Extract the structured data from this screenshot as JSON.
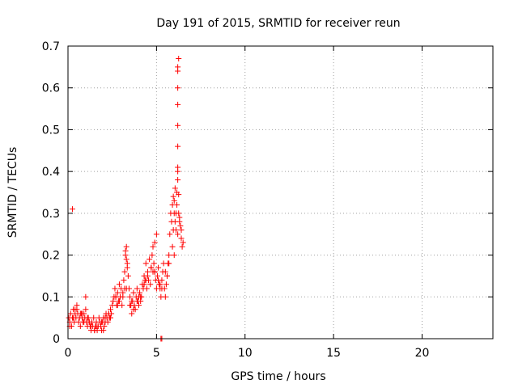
{
  "chart_data": {
    "type": "scatter",
    "title": "Day 191 of 2015, SRMTID for receiver reun",
    "xlabel": "GPS time / hours",
    "ylabel": "SRMTID / TECUs",
    "xlim": [
      0,
      24
    ],
    "ylim": [
      0,
      0.7
    ],
    "xticks": [
      0,
      5,
      10,
      15,
      20
    ],
    "xtick_labels": [
      "0",
      "5",
      "10",
      "15",
      "20"
    ],
    "yticks": [
      0,
      0.1,
      0.2,
      0.3,
      0.4,
      0.5,
      0.6,
      0.7
    ],
    "ytick_labels": [
      "0",
      "0.1",
      "0.2",
      "0.3",
      "0.4",
      "0.5",
      "0.6",
      "0.7"
    ],
    "grid": true,
    "marker": "+",
    "color": "#ff0000",
    "series": [
      {
        "name": "SRMTID",
        "x": [
          0.05,
          0.1,
          0.15,
          0.2,
          0.25,
          0.3,
          0.35,
          0.4,
          0.45,
          0.5,
          0.55,
          0.6,
          0.65,
          0.7,
          0.75,
          0.8,
          0.85,
          0.9,
          0.95,
          1.0,
          1.05,
          1.1,
          1.15,
          1.2,
          1.25,
          1.3,
          1.35,
          1.4,
          1.45,
          1.5,
          1.55,
          1.6,
          1.65,
          1.7,
          1.75,
          1.8,
          1.85,
          1.9,
          1.95,
          2.0,
          2.05,
          2.1,
          2.15,
          2.2,
          2.25,
          2.3,
          2.35,
          2.4,
          2.45,
          2.5,
          2.55,
          2.6,
          2.65,
          2.7,
          2.75,
          2.8,
          2.85,
          2.9,
          2.95,
          3.0,
          3.05,
          3.1,
          3.15,
          3.2,
          3.25,
          3.3,
          3.35,
          3.4,
          3.45,
          3.5,
          3.55,
          3.6,
          3.65,
          3.7,
          3.75,
          3.8,
          3.85,
          3.9,
          3.95,
          4.0,
          4.05,
          4.1,
          4.15,
          4.2,
          4.25,
          4.3,
          4.35,
          4.4,
          4.45,
          4.5,
          4.55,
          4.6,
          4.65,
          4.7,
          4.75,
          4.8,
          4.85,
          4.9,
          4.95,
          5.0,
          5.05,
          5.1,
          5.15,
          5.2,
          5.25,
          5.3,
          5.35,
          5.4,
          5.45,
          5.5,
          5.55,
          5.6,
          5.65,
          5.7,
          5.75,
          5.8,
          5.85,
          5.9,
          5.95,
          6.0,
          6.05,
          6.1,
          6.15,
          6.2,
          6.25,
          6.3,
          6.35,
          6.4,
          6.45,
          6.5,
          0.1,
          0.3,
          0.5,
          0.7,
          0.9,
          1.1,
          1.3,
          1.5,
          1.7,
          1.9,
          2.1,
          2.3,
          2.7,
          2.9,
          3.1,
          3.3,
          3.5,
          3.7,
          3.9,
          4.1,
          4.3,
          4.5,
          4.7,
          4.9,
          5.1,
          5.3,
          5.5,
          5.7,
          5.9,
          6.1,
          6.3,
          3.25,
          3.3,
          3.35,
          4.9,
          5.0,
          5.95,
          6.0,
          6.05,
          6.15,
          6.2,
          6.2,
          6.2,
          6.2,
          6.2,
          6.2,
          6.2,
          6.2,
          6.2,
          6.25,
          6.25,
          0.25,
          1.0,
          5.25,
          5.3,
          0.4,
          0.8,
          1.2,
          1.6,
          2.0,
          2.4,
          2.8,
          3.2,
          3.6,
          4.0,
          4.4,
          4.8,
          5.2,
          5.6,
          6.0,
          6.4
        ],
        "y": [
          0.05,
          0.04,
          0.06,
          0.03,
          0.05,
          0.07,
          0.04,
          0.06,
          0.05,
          0.08,
          0.06,
          0.04,
          0.05,
          0.03,
          0.06,
          0.05,
          0.04,
          0.06,
          0.05,
          0.07,
          0.04,
          0.03,
          0.05,
          0.04,
          0.03,
          0.02,
          0.04,
          0.03,
          0.05,
          0.02,
          0.03,
          0.04,
          0.02,
          0.03,
          0.05,
          0.04,
          0.03,
          0.02,
          0.04,
          0.05,
          0.03,
          0.04,
          0.06,
          0.05,
          0.04,
          0.06,
          0.05,
          0.07,
          0.06,
          0.08,
          0.09,
          0.1,
          0.12,
          0.1,
          0.08,
          0.11,
          0.09,
          0.13,
          0.1,
          0.12,
          0.08,
          0.1,
          0.14,
          0.16,
          0.2,
          0.22,
          0.18,
          0.15,
          0.12,
          0.1,
          0.08,
          0.06,
          0.09,
          0.11,
          0.08,
          0.07,
          0.1,
          0.12,
          0.09,
          0.08,
          0.11,
          0.09,
          0.1,
          0.13,
          0.12,
          0.15,
          0.14,
          0.18,
          0.12,
          0.16,
          0.14,
          0.19,
          0.13,
          0.17,
          0.2,
          0.22,
          0.18,
          0.16,
          0.14,
          0.12,
          0.15,
          0.17,
          0.13,
          0.12,
          0.1,
          0.14,
          0.16,
          0.18,
          0.12,
          0.1,
          0.13,
          0.15,
          0.18,
          0.2,
          0.25,
          0.3,
          0.28,
          0.32,
          0.26,
          0.3,
          0.28,
          0.26,
          0.32,
          0.25,
          0.3,
          0.28,
          0.27,
          0.24,
          0.22,
          0.23,
          0.03,
          0.05,
          0.07,
          0.06,
          0.04,
          0.05,
          0.03,
          0.02,
          0.03,
          0.04,
          0.05,
          0.06,
          0.1,
          0.09,
          0.11,
          0.12,
          0.08,
          0.07,
          0.09,
          0.1,
          0.13,
          0.15,
          0.17,
          0.16,
          0.14,
          0.12,
          0.16,
          0.18,
          0.22,
          0.3,
          0.29,
          0.21,
          0.19,
          0.17,
          0.23,
          0.25,
          0.34,
          0.33,
          0.36,
          0.35,
          0.38,
          0.4,
          0.41,
          0.46,
          0.51,
          0.56,
          0.6,
          0.64,
          0.65,
          0.67,
          0.345,
          0.31,
          0.1,
          0.0,
          0.0,
          0.07,
          0.06,
          0.04,
          0.03,
          0.02,
          0.05,
          0.08,
          0.12,
          0.09,
          0.1,
          0.14,
          0.16,
          0.13,
          0.15,
          0.2,
          0.26
        ]
      }
    ]
  }
}
